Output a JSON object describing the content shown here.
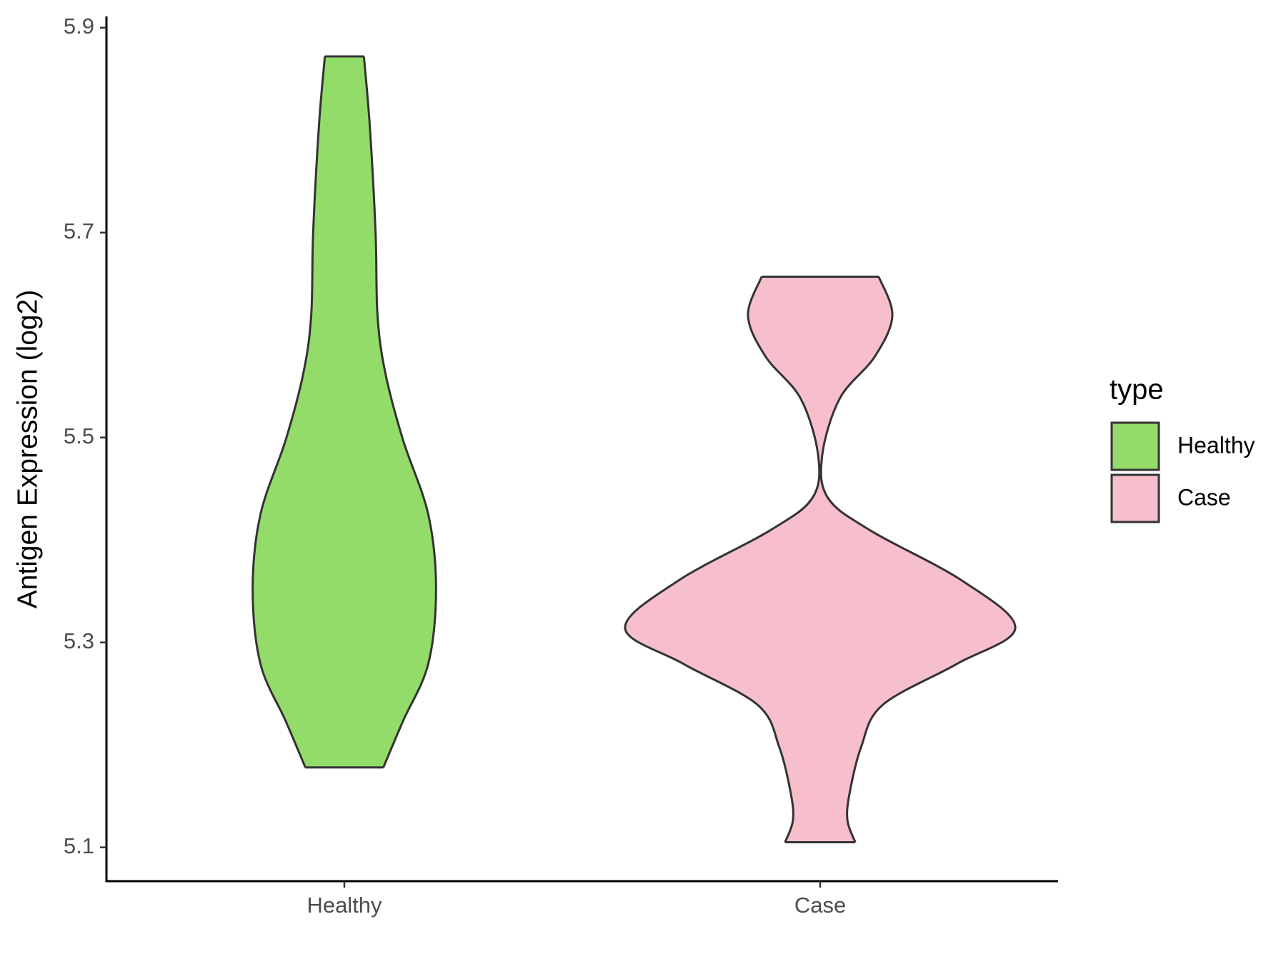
{
  "chart_data": {
    "type": "violin",
    "y_label": "Antigen Expression (log2)",
    "legend_title": "type",
    "legend_position": "right",
    "categories": [
      "Healthy",
      "Case"
    ],
    "series": [
      {
        "name": "Healthy",
        "color": "#93dc6a",
        "y": [
          5.872,
          5.805,
          5.7,
          5.619,
          5.563,
          5.498,
          5.425,
          5.352,
          5.279,
          5.223,
          5.178
        ],
        "density": [
          0.1,
          0.13,
          0.16,
          0.17,
          0.21,
          0.3,
          0.43,
          0.47,
          0.43,
          0.3,
          0.2
        ]
      },
      {
        "name": "Case",
        "color": "#f7bfcb",
        "y": [
          5.657,
          5.619,
          5.579,
          5.538,
          5.482,
          5.441,
          5.409,
          5.36,
          5.314,
          5.279,
          5.239,
          5.198,
          5.152,
          5.126,
          5.105
        ],
        "density": [
          0.3,
          0.37,
          0.28,
          0.1,
          0.01,
          0.04,
          0.26,
          0.73,
          1.0,
          0.7,
          0.32,
          0.21,
          0.15,
          0.14,
          0.18
        ]
      }
    ],
    "ylim": [
      5.067,
      5.911
    ],
    "yticks": [
      5.1,
      5.3,
      5.5,
      5.7,
      5.9
    ],
    "grid": false
  }
}
